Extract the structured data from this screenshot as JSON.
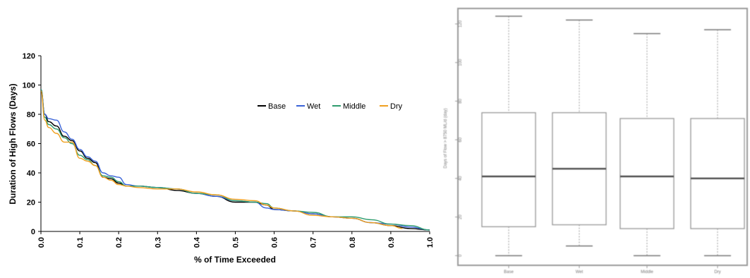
{
  "chart_data": [
    {
      "type": "line",
      "title": "",
      "xlabel": "% of Time Exceeded",
      "ylabel": "Duration of High Flows (Days)",
      "xlim": [
        0.0,
        1.0
      ],
      "ylim": [
        0,
        120
      ],
      "xticks": [
        "0.0",
        "0.1",
        "0.2",
        "0.3",
        "0.4",
        "0.5",
        "0.6",
        "0.7",
        "0.8",
        "0.9",
        "1.0"
      ],
      "yticks": [
        "0",
        "20",
        "40",
        "60",
        "80",
        "100",
        "120"
      ],
      "grid": false,
      "legend_position": "right",
      "series": [
        {
          "name": "Base",
          "color": "#000000",
          "x": [
            0.0,
            0.01,
            0.02,
            0.04,
            0.06,
            0.08,
            0.1,
            0.12,
            0.14,
            0.16,
            0.18,
            0.2,
            0.22,
            0.25,
            0.3,
            0.35,
            0.4,
            0.45,
            0.5,
            0.55,
            0.58,
            0.6,
            0.65,
            0.7,
            0.75,
            0.8,
            0.85,
            0.9,
            0.95,
            1.0
          ],
          "y": [
            97,
            80,
            75,
            72,
            65,
            62,
            55,
            50,
            47,
            37,
            36,
            33,
            31,
            31,
            30,
            28,
            26,
            24,
            20,
            20,
            18,
            15,
            14,
            12,
            10,
            9,
            6,
            4,
            2,
            1
          ]
        },
        {
          "name": "Wet",
          "color": "#3a63d8",
          "x": [
            0.0,
            0.01,
            0.02,
            0.04,
            0.06,
            0.08,
            0.1,
            0.12,
            0.14,
            0.16,
            0.18,
            0.2,
            0.22,
            0.25,
            0.3,
            0.35,
            0.4,
            0.45,
            0.5,
            0.55,
            0.58,
            0.6,
            0.65,
            0.7,
            0.75,
            0.8,
            0.85,
            0.9,
            0.95,
            1.0
          ],
          "y": [
            97,
            80,
            77,
            76,
            68,
            63,
            56,
            51,
            48,
            40,
            38,
            37,
            32,
            31,
            30,
            29,
            26,
            24,
            21,
            20,
            16,
            15,
            14,
            12,
            10,
            9,
            6,
            5,
            3,
            1
          ]
        },
        {
          "name": "Middle",
          "color": "#2e9c6e",
          "x": [
            0.0,
            0.01,
            0.02,
            0.04,
            0.06,
            0.08,
            0.1,
            0.12,
            0.14,
            0.16,
            0.18,
            0.2,
            0.22,
            0.25,
            0.3,
            0.35,
            0.4,
            0.45,
            0.5,
            0.55,
            0.58,
            0.6,
            0.65,
            0.7,
            0.75,
            0.8,
            0.85,
            0.9,
            0.95,
            1.0
          ],
          "y": [
            97,
            78,
            73,
            70,
            64,
            60,
            52,
            49,
            45,
            38,
            37,
            34,
            31,
            31,
            30,
            29,
            26,
            25,
            21,
            20,
            19,
            16,
            14,
            13,
            10,
            10,
            8,
            5,
            4,
            1
          ]
        },
        {
          "name": "Dry",
          "color": "#f0a020",
          "x": [
            0.0,
            0.01,
            0.02,
            0.04,
            0.06,
            0.08,
            0.1,
            0.12,
            0.14,
            0.16,
            0.18,
            0.2,
            0.22,
            0.25,
            0.3,
            0.35,
            0.4,
            0.45,
            0.5,
            0.55,
            0.58,
            0.6,
            0.65,
            0.7,
            0.75,
            0.8,
            0.85,
            0.9,
            0.93
          ],
          "y": [
            96,
            76,
            71,
            67,
            61,
            61,
            50,
            48,
            45,
            37,
            35,
            32,
            31,
            30,
            29,
            29,
            27,
            25,
            22,
            21,
            18,
            16,
            14,
            11,
            10,
            9,
            6,
            4,
            2
          ]
        }
      ]
    },
    {
      "type": "box",
      "title": "",
      "xlabel": "",
      "ylabel": "Days of Flow > 8750 ML/d (day)",
      "ylim": [
        -5,
        128
      ],
      "yticks": [
        "0",
        "20",
        "40",
        "60",
        "80",
        "100",
        "120"
      ],
      "grid": false,
      "categories": [
        "Base",
        "Wet",
        "Middle",
        "Dry"
      ],
      "boxes": [
        {
          "name": "Base",
          "min": 0,
          "q1": 15,
          "median": 41,
          "q3": 74,
          "max": 124
        },
        {
          "name": "Wet",
          "min": 5,
          "q1": 16,
          "median": 45,
          "q3": 74,
          "max": 122
        },
        {
          "name": "Middle",
          "min": 0,
          "q1": 14,
          "median": 41,
          "q3": 71,
          "max": 115
        },
        {
          "name": "Dry",
          "min": 0,
          "q1": 14,
          "median": 40,
          "q3": 71,
          "max": 117
        }
      ]
    }
  ]
}
